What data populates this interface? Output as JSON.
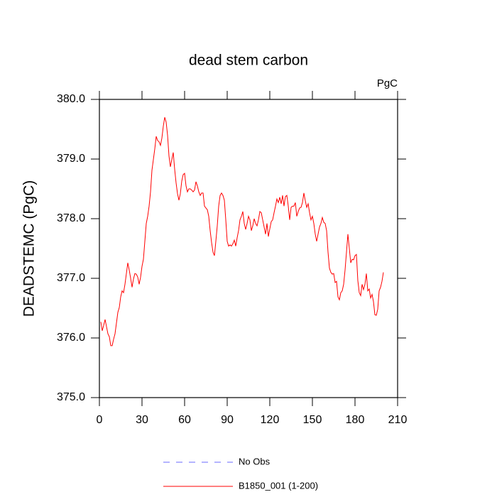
{
  "chart_data": {
    "type": "line",
    "title": "dead stem carbon",
    "units_label": "PgC",
    "y_label": "DEADSTEMC  (PgC)",
    "x": [
      1,
      2,
      3,
      4,
      5,
      6,
      7,
      8,
      9,
      10,
      11,
      12,
      13,
      14,
      15,
      16,
      17,
      18,
      19,
      20,
      21,
      22,
      23,
      24,
      25,
      26,
      27,
      28,
      29,
      30,
      31,
      32,
      33,
      34,
      35,
      36,
      37,
      38,
      39,
      40,
      41,
      42,
      43,
      44,
      45,
      46,
      47,
      48,
      49,
      50,
      51,
      52,
      53,
      54,
      55,
      56,
      57,
      58,
      59,
      60,
      61,
      62,
      63,
      64,
      65,
      66,
      67,
      68,
      69,
      70,
      71,
      72,
      73,
      74,
      75,
      76,
      77,
      78,
      79,
      80,
      81,
      82,
      83,
      84,
      85,
      86,
      87,
      88,
      89,
      90,
      91,
      92,
      93,
      94,
      95,
      96,
      97,
      98,
      99,
      100,
      101,
      102,
      103,
      104,
      105,
      106,
      107,
      108,
      109,
      110,
      111,
      112,
      113,
      114,
      115,
      116,
      117,
      118,
      119,
      120,
      121,
      122,
      123,
      124,
      125,
      126,
      127,
      128,
      129,
      130,
      131,
      132,
      133,
      134,
      135,
      136,
      137,
      138,
      139,
      140,
      141,
      142,
      143,
      144,
      145,
      146,
      147,
      148,
      149,
      150,
      151,
      152,
      153,
      154,
      155,
      156,
      157,
      158,
      159,
      160,
      161,
      162,
      163,
      164,
      165,
      166,
      167,
      168,
      169,
      170,
      171,
      172,
      173,
      174,
      175,
      176,
      177,
      178,
      179,
      180,
      181,
      182,
      183,
      184,
      185,
      186,
      187,
      188,
      189,
      190,
      191,
      192,
      193,
      194,
      195,
      196,
      197,
      198,
      199,
      200
    ],
    "series": [
      {
        "name": "B1850_001 (1-200)",
        "color": "#ff0000",
        "values": [
          376.27,
          376.12,
          376.21,
          376.31,
          376.19,
          376.07,
          376.02,
          375.87,
          375.87,
          375.98,
          376.07,
          376.25,
          376.43,
          376.51,
          376.69,
          376.79,
          376.76,
          376.9,
          377.08,
          377.26,
          377.14,
          377.0,
          376.85,
          376.99,
          377.08,
          377.07,
          377.02,
          376.9,
          377.02,
          377.2,
          377.32,
          377.62,
          377.92,
          378.04,
          378.21,
          378.45,
          378.81,
          378.99,
          379.17,
          379.38,
          379.31,
          379.29,
          379.23,
          379.35,
          379.55,
          379.7,
          379.62,
          379.4,
          379.05,
          378.87,
          378.99,
          379.11,
          378.83,
          378.6,
          378.42,
          378.31,
          378.42,
          378.63,
          378.74,
          378.76,
          378.55,
          378.45,
          378.5,
          378.5,
          378.48,
          378.45,
          378.48,
          378.62,
          378.55,
          378.45,
          378.39,
          378.43,
          378.43,
          378.21,
          378.18,
          378.15,
          378.04,
          377.8,
          377.6,
          377.44,
          377.38,
          377.62,
          377.88,
          378.21,
          378.39,
          378.43,
          378.39,
          378.31,
          377.98,
          377.62,
          377.54,
          377.56,
          377.54,
          377.58,
          377.64,
          377.54,
          377.68,
          377.8,
          377.98,
          378.04,
          378.12,
          377.92,
          377.82,
          377.92,
          378.04,
          377.98,
          377.8,
          377.88,
          378.0,
          377.92,
          377.88,
          377.98,
          378.12,
          378.1,
          377.98,
          377.86,
          377.74,
          377.92,
          377.7,
          377.83,
          377.95,
          377.98,
          378.1,
          378.21,
          378.33,
          378.27,
          378.36,
          378.25,
          378.39,
          378.21,
          378.37,
          378.39,
          378.21,
          377.98,
          378.19,
          378.21,
          378.21,
          378.27,
          378.04,
          378.12,
          378.18,
          378.19,
          378.27,
          378.43,
          378.3,
          378.19,
          378.25,
          378.1,
          377.98,
          378.04,
          377.92,
          377.74,
          377.62,
          377.74,
          377.86,
          377.92,
          378.02,
          377.94,
          377.92,
          377.8,
          377.44,
          377.17,
          377.1,
          377.07,
          377.08,
          376.93,
          376.95,
          376.69,
          376.64,
          376.76,
          376.79,
          376.9,
          377.14,
          377.44,
          377.74,
          377.5,
          377.26,
          377.32,
          377.31,
          377.38,
          377.4,
          376.96,
          376.76,
          376.71,
          376.9,
          376.81,
          376.9,
          377.08,
          376.79,
          376.82,
          376.67,
          376.73,
          376.61,
          376.39,
          376.38,
          376.48,
          376.79,
          376.85,
          376.95,
          377.1
        ]
      }
    ],
    "obs": {
      "name": "No Obs",
      "color": "#6a6aff",
      "dashed": true
    },
    "xlim": [
      0,
      210
    ],
    "xticks": [
      0,
      30,
      60,
      90,
      120,
      150,
      180,
      210
    ],
    "ylim": [
      375,
      380
    ],
    "yticks": [
      {
        "value": 375,
        "label": "375.0"
      },
      {
        "value": 376,
        "label": "376.0"
      },
      {
        "value": 377,
        "label": "377.0"
      },
      {
        "value": 378,
        "label": "378.0"
      },
      {
        "value": 379,
        "label": "379.0"
      },
      {
        "value": 380,
        "label": "380.0"
      }
    ]
  }
}
